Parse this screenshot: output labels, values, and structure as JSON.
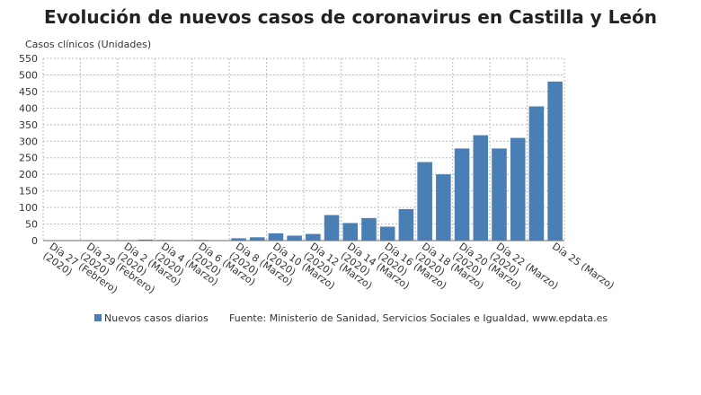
{
  "chart_data": {
    "type": "bar",
    "title": "Evolución de nuevos casos de coronavirus en Castilla y León",
    "y_label": "Casos clínicos (Unidades)",
    "source": "Fuente: Ministerio de Sanidad, Servicios Sociales e Igualdad, www.epdata.es",
    "categories": [
      "Día 27 (Febrero)\n(2020)",
      null,
      "Día 29 (Febrero)\n(2020)",
      null,
      "Día 2 (Marzo)\n(2020)",
      null,
      "Día 4 (Marzo)\n(2020)",
      null,
      "Día 6 (Marzo)\n(2020)",
      null,
      "Día 8 (Marzo)\n(2020)",
      null,
      "Día 10 (Marzo)\n(2020)",
      null,
      "Día 12 (Marzo)\n(2020)",
      null,
      "Día 14 (Marzo)\n(2020)",
      null,
      "Día 16 (Marzo)\n(2020)",
      null,
      "Día 18 (Marzo)\n(2020)",
      null,
      "Día 20 (Marzo)\n(2020)",
      null,
      "Día 22 (Marzo)\n(2020)",
      null,
      null,
      "Día 25 (Marzo)"
    ],
    "series": [
      {
        "name": "Nuevos casos diarios",
        "color": "#4a7fb5",
        "values": [
          1,
          0,
          0,
          0,
          0,
          3,
          2,
          0,
          2,
          1,
          7,
          10,
          22,
          15,
          20,
          77,
          53,
          68,
          42,
          95,
          237,
          200,
          278,
          318,
          278,
          310,
          405,
          480
        ]
      }
    ],
    "ylim": [
      0,
      550
    ],
    "yticks": [
      0,
      50,
      100,
      150,
      200,
      250,
      300,
      350,
      400,
      450,
      500,
      550
    ],
    "grid": true
  }
}
